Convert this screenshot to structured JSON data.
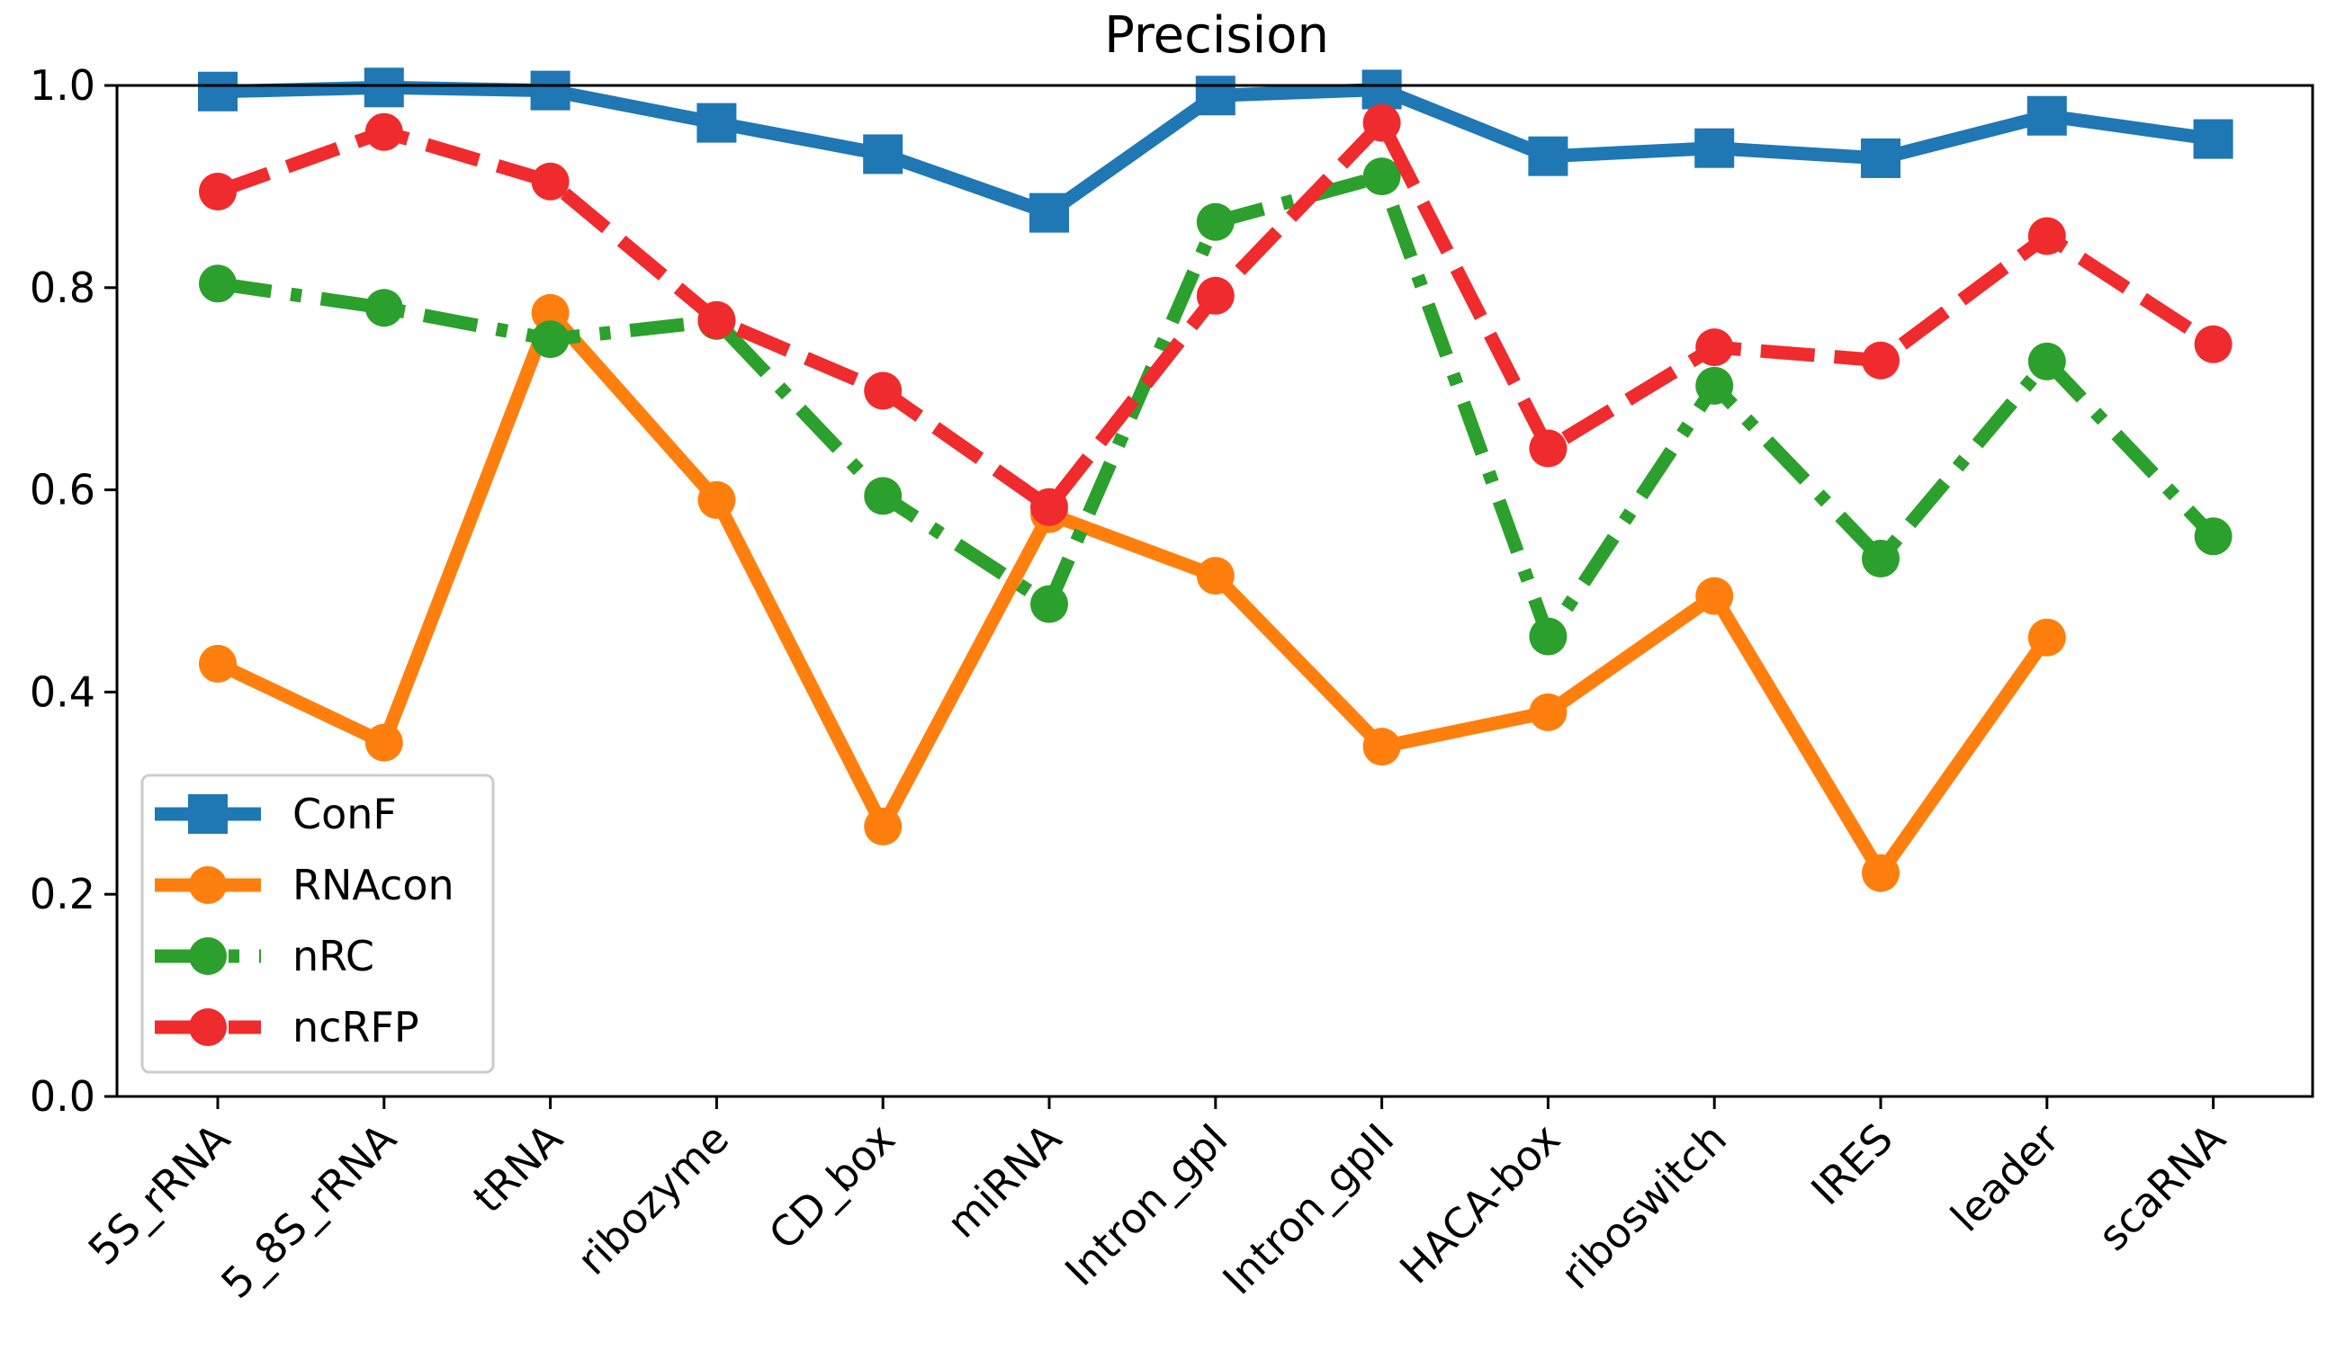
{
  "chart_data": {
    "type": "line",
    "title": "Precision",
    "xlabel": "",
    "ylabel": "",
    "ylim": [
      0.0,
      1.0
    ],
    "yticks": [
      "0.0",
      "0.2",
      "0.4",
      "0.6",
      "0.8",
      "1.0"
    ],
    "grid": false,
    "legend_position": "lower-left",
    "categories": [
      "5S_rRNA",
      "5_8S_rRNA",
      "tRNA",
      "ribozyme",
      "CD_box",
      "miRNA",
      "Intron_gpI",
      "Intron_gpII",
      "HACA-box",
      "riboswitch",
      "IRES",
      "leader",
      "scaRNA"
    ],
    "series": [
      {
        "name": "ConF",
        "color": "#1f77b4",
        "line_style": "solid",
        "marker": "square",
        "values": [
          0.994,
          0.998,
          0.995,
          0.963,
          0.932,
          0.874,
          0.99,
          0.996,
          0.93,
          0.938,
          0.928,
          0.97,
          0.947
        ]
      },
      {
        "name": "RNAcon",
        "color": "#ff7f0e",
        "line_style": "solid",
        "marker": "circle",
        "values": [
          0.428,
          0.35,
          0.775,
          0.59,
          0.267,
          0.576,
          0.515,
          0.346,
          0.38,
          0.495,
          0.221,
          0.454,
          null
        ]
      },
      {
        "name": "nRC",
        "color": "#2ca02c",
        "line_style": "dashdot",
        "marker": "circle",
        "values": [
          0.804,
          0.78,
          0.749,
          0.767,
          0.594,
          0.487,
          0.865,
          0.91,
          0.455,
          0.703,
          0.532,
          0.727,
          0.554
        ]
      },
      {
        "name": "ncRFP",
        "color": "#ef2b2d",
        "line_style": "dashed",
        "marker": "circle",
        "values": [
          0.895,
          0.954,
          0.905,
          0.768,
          0.698,
          0.583,
          0.792,
          0.963,
          0.641,
          0.741,
          0.728,
          0.851,
          0.744
        ]
      }
    ]
  }
}
